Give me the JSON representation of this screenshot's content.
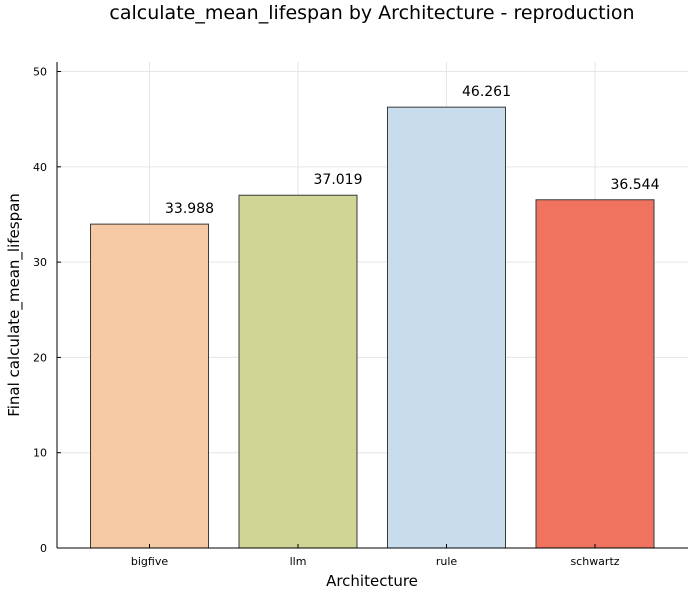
{
  "chart_data": {
    "type": "bar",
    "title": "calculate_mean_lifespan by Architecture - reproduction",
    "xlabel": "Architecture",
    "ylabel": "Final calculate_mean_lifespan",
    "categories": [
      "bigfive",
      "llm",
      "rule",
      "schwartz"
    ],
    "values": [
      33.988,
      37.019,
      46.261,
      36.544
    ],
    "value_labels": [
      "33.988",
      "37.019",
      "46.261",
      "36.544"
    ],
    "colors": [
      "#f5c9a3",
      "#d0d595",
      "#c8dcec",
      "#f07360"
    ],
    "ylim": [
      0,
      51
    ],
    "yticks": [
      0,
      10,
      20,
      30,
      40,
      50
    ],
    "grid": true,
    "legend": "none"
  }
}
